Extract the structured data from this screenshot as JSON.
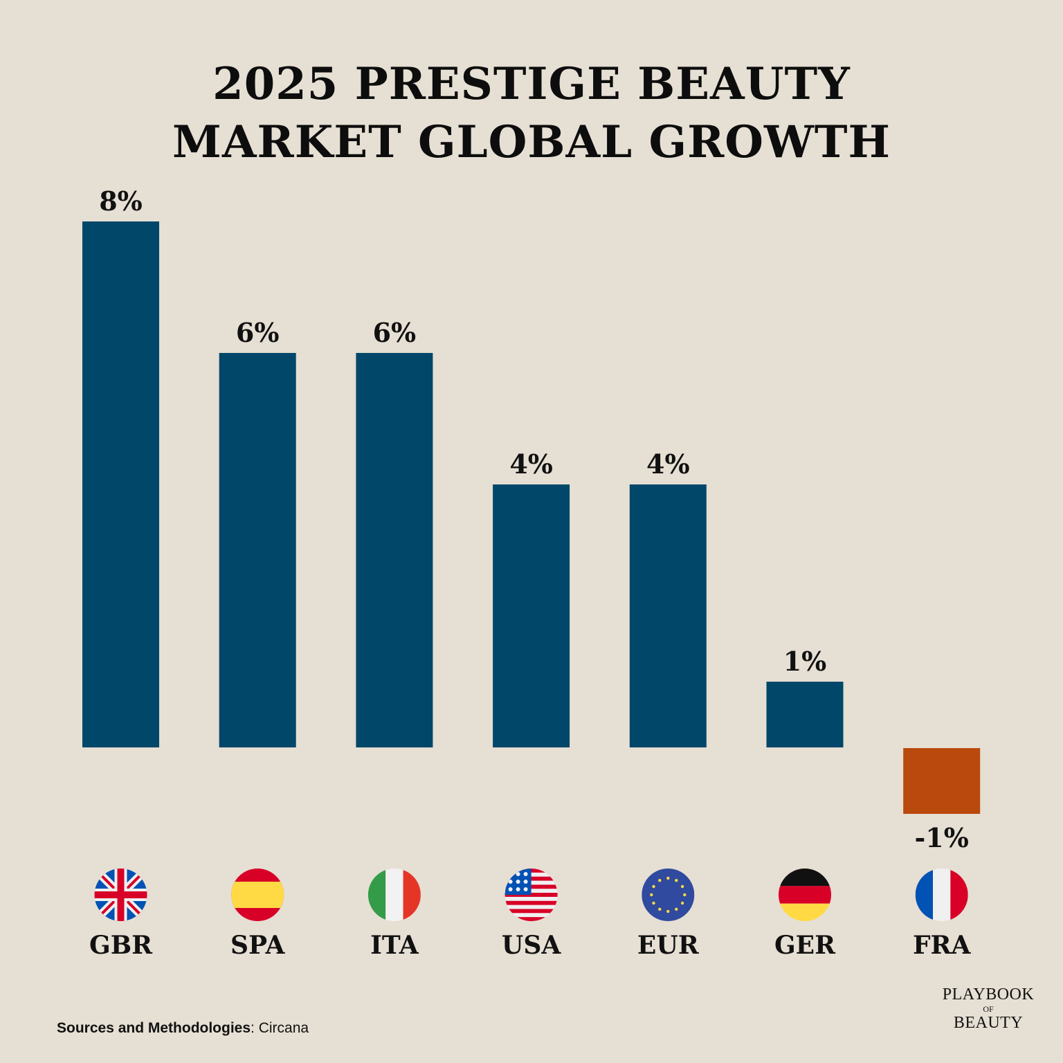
{
  "title": {
    "line1": "2025 PRESTIGE BEAUTY",
    "line2": "MARKET GLOBAL GROWTH"
  },
  "chart_data": {
    "type": "bar",
    "title": "2025 PRESTIGE BEAUTY MARKET GLOBAL GROWTH",
    "categories": [
      "GBR",
      "SPA",
      "ITA",
      "USA",
      "EUR",
      "GER",
      "FRA"
    ],
    "values": [
      8,
      6,
      6,
      4,
      4,
      1,
      -1
    ],
    "data_labels": [
      "8%",
      "6%",
      "6%",
      "4%",
      "4%",
      "1%",
      "-1%"
    ],
    "flags": [
      "uk-flag",
      "spain-flag",
      "italy-flag",
      "usa-flag",
      "eu-flag",
      "germany-flag",
      "france-flag"
    ],
    "unit": "%",
    "colors": {
      "positive": "#00476a",
      "negative": "#b9490d"
    },
    "grid": false,
    "legend": "none"
  },
  "footer": {
    "source_label": "Sources and Methodologies",
    "source_value": ": Circana"
  },
  "logo": {
    "line1": "PLAYBOOK",
    "line2": "OF",
    "line3": "BEAUTY"
  }
}
